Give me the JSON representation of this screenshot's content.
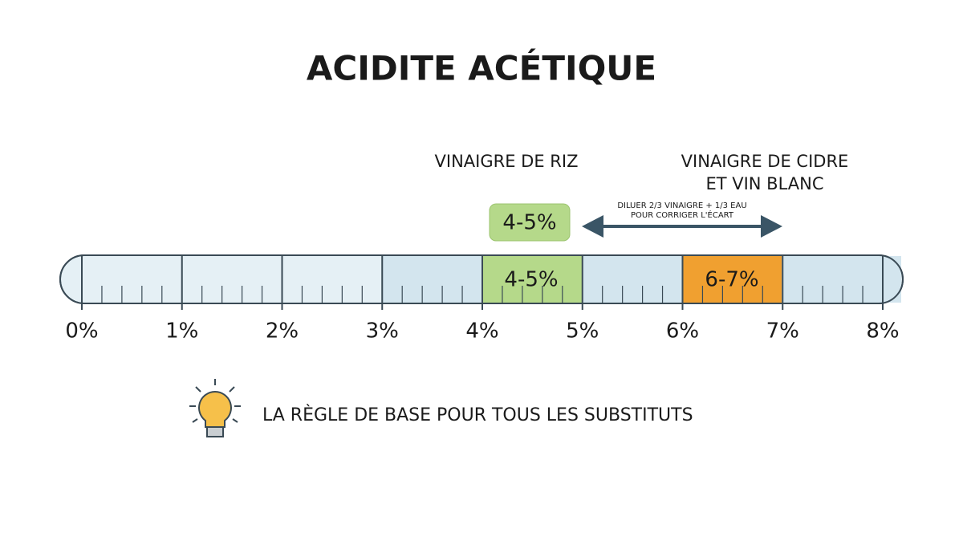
{
  "title": "ACIDITE ACÉTIQUE",
  "labels": {
    "rice": "VINAIGRE DE RIZ",
    "cider": [
      "VINAIGRE DE CIDRE",
      "ET VIN BLANC"
    ]
  },
  "badge": "4-5%",
  "arrow_note": [
    "DILUER 2/3 VINAIGRE + 1/3 EAU",
    "POUR CORRIGER L'ÉCART"
  ],
  "bar_ranges": [
    "4-5%",
    "6-7%"
  ],
  "scale": [
    "0%",
    "1%",
    "2%",
    "3%",
    "4%",
    "5%",
    "6%",
    "7%",
    "8%"
  ],
  "tip": "LA RÈGLE DE BASE POUR TOUS LES SUBSTITUTS"
}
